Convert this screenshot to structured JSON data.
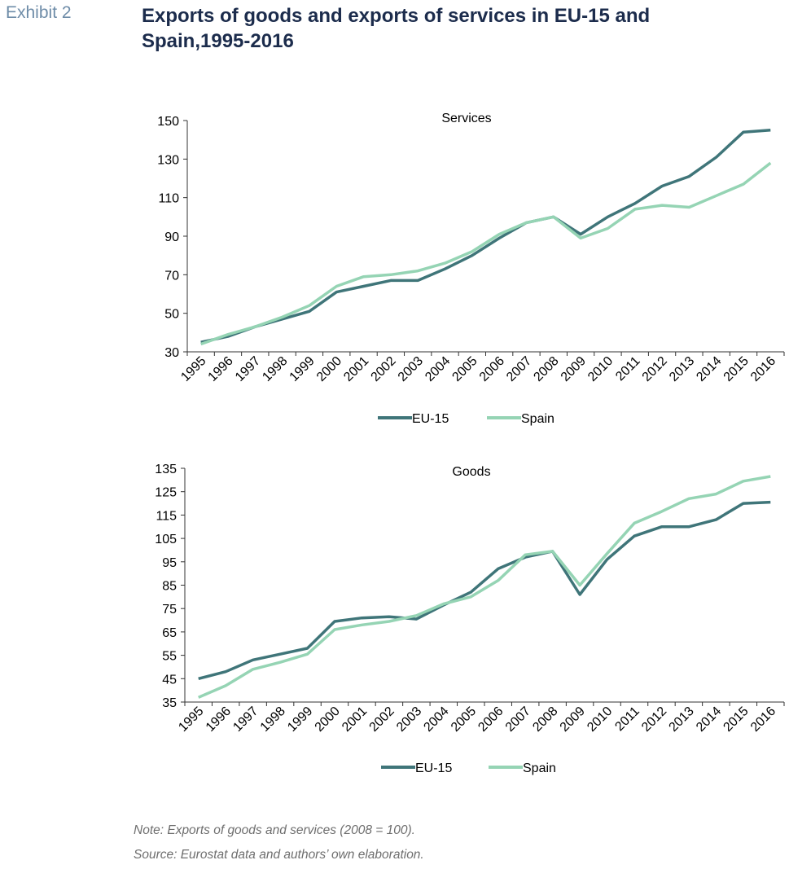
{
  "header": {
    "exhibit": "Exhibit 2",
    "title": "Exports of goods and exports of services in EU-15 and Spain,1995-2016"
  },
  "footer": {
    "note": "Note: Exports of goods and services (2008 = 100).",
    "source": "Source: Eurostat data and authors’ own elaboration."
  },
  "colors": {
    "eu15": "#3f7579",
    "spain": "#95d4b4",
    "axis": "#333333"
  },
  "chart_data": [
    {
      "type": "line",
      "title": "Services",
      "x": [
        "1995",
        "1996",
        "1997",
        "1998",
        "1999",
        "2000",
        "2001",
        "2002",
        "2003",
        "2004",
        "2005",
        "2006",
        "2007",
        "2008",
        "2009",
        "2010",
        "2011",
        "2012",
        "2013",
        "2014",
        "2015",
        "2016"
      ],
      "ylim": [
        30,
        150
      ],
      "yticks": [
        30,
        50,
        70,
        90,
        110,
        130,
        150
      ],
      "legend_position": "bottom",
      "grid": false,
      "series": [
        {
          "name": "EU-15",
          "values": [
            35,
            38,
            43,
            47,
            51,
            61,
            64,
            67,
            67,
            73,
            80,
            89,
            97,
            100,
            91,
            100,
            107,
            116,
            121,
            131,
            144,
            145
          ]
        },
        {
          "name": "Spain",
          "values": [
            34,
            39,
            43,
            48,
            54,
            64,
            69,
            70,
            72,
            76,
            82,
            91,
            97,
            100,
            89,
            94,
            104,
            106,
            105,
            111,
            117,
            128
          ]
        }
      ]
    },
    {
      "type": "line",
      "title": "Goods",
      "x": [
        "1995",
        "1996",
        "1997",
        "1998",
        "1999",
        "2000",
        "2001",
        "2002",
        "2003",
        "2004",
        "2005",
        "2006",
        "2007",
        "2008",
        "2009",
        "2010",
        "2011",
        "2012",
        "2013",
        "2014",
        "2015",
        "2016"
      ],
      "ylim": [
        35,
        135
      ],
      "yticks": [
        35,
        45,
        55,
        65,
        75,
        85,
        95,
        105,
        115,
        125,
        135
      ],
      "legend_position": "bottom",
      "grid": false,
      "series": [
        {
          "name": "EU-15",
          "values": [
            45,
            48,
            53,
            55.5,
            58,
            69.5,
            71,
            71.5,
            70.5,
            76.5,
            82,
            92,
            97,
            99.5,
            81,
            96,
            106,
            110,
            110,
            113,
            120,
            120.5
          ]
        },
        {
          "name": "Spain",
          "values": [
            37,
            42,
            49,
            52,
            55.5,
            66,
            68,
            69.5,
            72,
            77,
            80,
            87,
            98,
            99.5,
            85,
            98.5,
            111.5,
            116.5,
            122,
            124,
            129.5,
            131.5
          ]
        }
      ]
    }
  ]
}
